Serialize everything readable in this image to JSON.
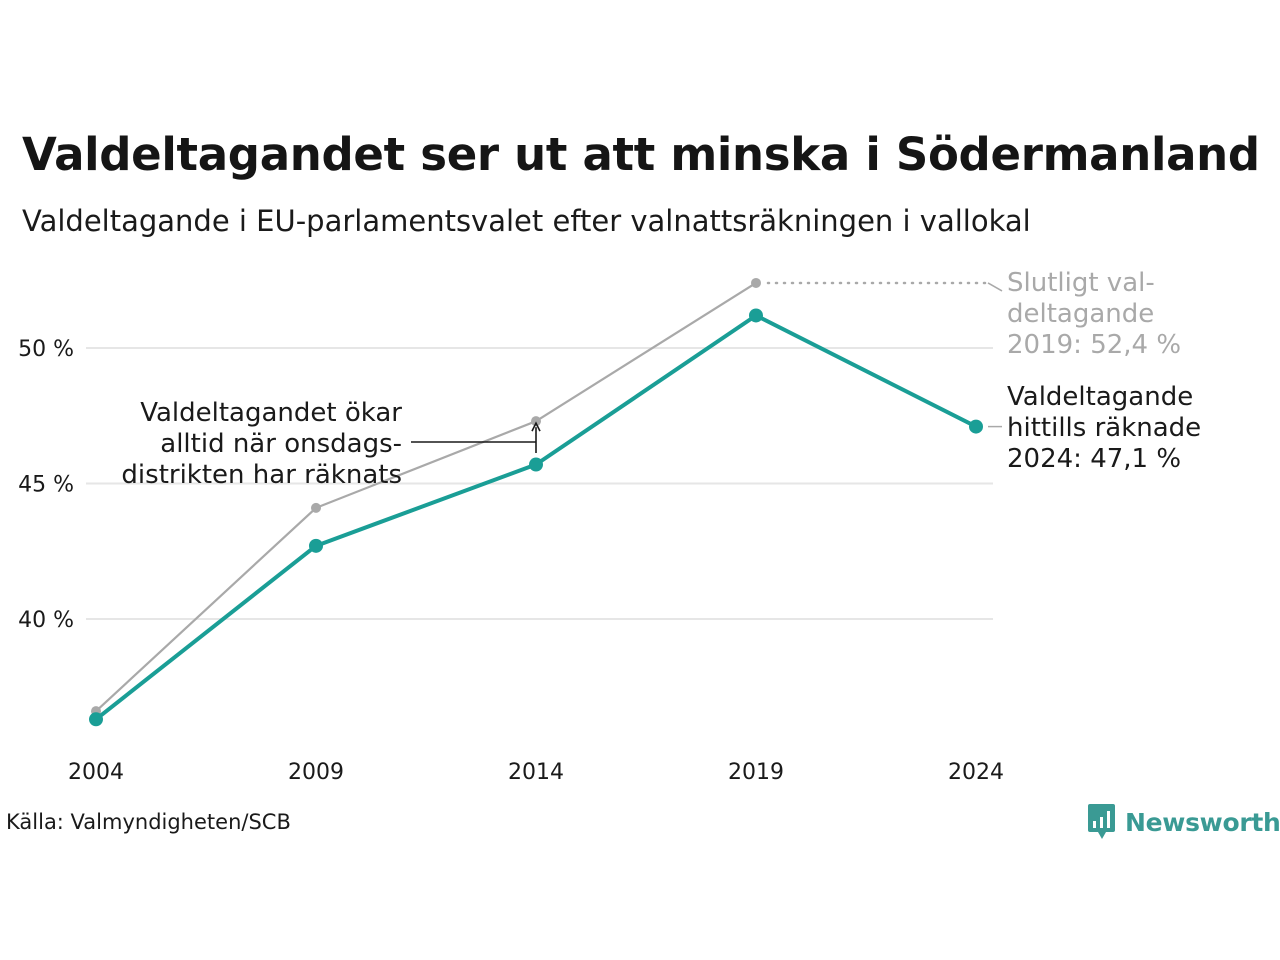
{
  "title": "Valdeltagandet ser ut att minska i Södermanland",
  "subtitle": "Valdeltagande i EU-parlamentsvalet efter valnattsräkningen i vallokal",
  "source": "Källa: Valmyndigheten/SCB",
  "logo": {
    "text": "Newsworthy",
    "icon": "bar-chart-speech-bubble-icon"
  },
  "colors": {
    "teal": "#1a9e96",
    "gray": "#a9a9a9",
    "grid": "#e6e6e6",
    "annotation_gray": "#a9a9a9",
    "text": "#1a1a1a"
  },
  "chart_data": {
    "type": "line",
    "x": [
      "2004",
      "2009",
      "2014",
      "2019",
      "2024"
    ],
    "y_ticks": [
      40,
      45,
      50
    ],
    "y_tick_labels": [
      "40 %",
      "45 %",
      "50 %"
    ],
    "ylim": [
      35,
      53
    ],
    "grid": true,
    "series": [
      {
        "id": "final",
        "color": "#a9a9a9",
        "values": [
          36.6,
          44.1,
          47.3,
          52.4,
          null
        ]
      },
      {
        "id": "election-night",
        "color": "#1a9e96",
        "values": [
          36.3,
          42.7,
          45.7,
          51.2,
          47.1
        ]
      }
    ],
    "annotations": {
      "final_2019": [
        "Slutligt val-",
        "deltagande",
        "2019: 52,4 %"
      ],
      "counted_2024": [
        "Valdeltagande",
        "hittills räknade",
        "2024: 47,1 %"
      ],
      "wednesday": [
        "Valdeltagandet ökar",
        "alltid när onsdags-",
        "distrikten har räknats"
      ]
    }
  }
}
